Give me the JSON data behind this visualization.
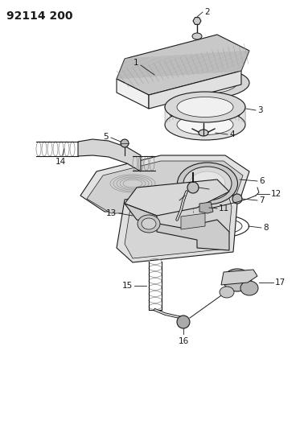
{
  "title": "92114 200",
  "bg_color": "#ffffff",
  "line_color": "#1a1a1a",
  "gray_light": "#d8d8d8",
  "gray_mid": "#b0b0b0",
  "gray_dark": "#888888",
  "hatch_color": "#555555",
  "title_fontsize": 10,
  "label_fontsize": 7.5
}
